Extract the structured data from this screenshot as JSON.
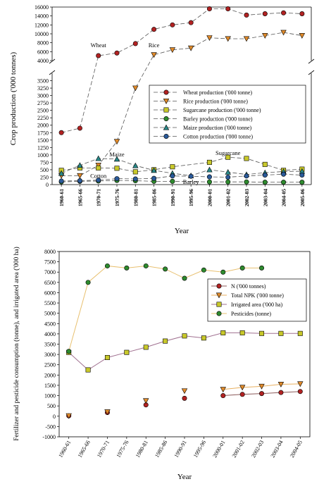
{
  "chart_data": [
    {
      "type": "line",
      "ylabel": "Crop production ('000 tonnes)",
      "xlabel": "Year",
      "categories": [
        "1960-61",
        "1965-66",
        "1970-71",
        "1975-76",
        "1980-81",
        "1985-86",
        "1990-91",
        "1995-96",
        "2000-01",
        "2001-02",
        "2002-03",
        "2003-04",
        "2004-05",
        "2005-06"
      ],
      "ylim_lower": [
        0,
        3750
      ],
      "ylim_upper": [
        4000,
        16000
      ],
      "y_ticks_lower": [
        0,
        250,
        500,
        750,
        1000,
        1250,
        1500,
        1750,
        2000,
        2250,
        2500,
        2750,
        3000,
        3250,
        3500
      ],
      "y_ticks_upper": [
        4000,
        6000,
        8000,
        10000,
        12000,
        14000,
        16000
      ],
      "axis_break": true,
      "legend_position": "middle-right",
      "series": [
        {
          "name": "Wheat production ('000 tonne)",
          "color": "#b22222",
          "marker": "circle",
          "values": [
            1750,
            1900,
            5100,
            5700,
            7800,
            11000,
            12000,
            12500,
            15600,
            15600,
            14200,
            14500,
            14700,
            14500
          ]
        },
        {
          "name": "Rice production ('000 tonne)",
          "color": "#e08a2a",
          "marker": "triangle-down",
          "values": [
            300,
            300,
            650,
            1450,
            3250,
            5300,
            6400,
            6800,
            9100,
            8900,
            8900,
            9600,
            10300,
            9600
          ]
        },
        {
          "name": "Sugarcane production ('000 tonne)",
          "color": "#c8c82a",
          "marker": "square",
          "values": [
            480,
            560,
            560,
            550,
            430,
            500,
            600,
            null,
            750,
            920,
            880,
            680,
            480,
            520
          ]
        },
        {
          "name": "Barley production ('000 tonne)",
          "color": "#2e8b2e",
          "marker": "circle",
          "values": [
            90,
            110,
            120,
            140,
            130,
            110,
            110,
            null,
            90,
            90,
            90,
            80,
            80,
            80
          ]
        },
        {
          "name": "Maize production ('000 tonne)",
          "color": "#2a8a8a",
          "marker": "triangle-up",
          "values": [
            380,
            650,
            880,
            860,
            640,
            480,
            380,
            300,
            500,
            420,
            340,
            400,
            440,
            450
          ]
        },
        {
          "name": "Cotton production ('000 tonne)",
          "color": "#2a5a9a",
          "marker": "circle",
          "values": [
            120,
            130,
            150,
            200,
            190,
            210,
            290,
            280,
            260,
            250,
            290,
            320,
            350,
            320
          ]
        }
      ],
      "annotations": [
        {
          "text": "Wheat",
          "category": "1970-71",
          "value": 7000
        },
        {
          "text": "Rice",
          "category": "1985-86",
          "value": 7000
        },
        {
          "text": "Maize",
          "category": "1975-76",
          "value": 950
        },
        {
          "text": "Cotton",
          "category": "1970-71",
          "value": 230
        },
        {
          "text": "Sugarcane",
          "category": "2001-02",
          "value": 1000
        },
        {
          "text": "Barley",
          "category": "1995-96",
          "value": 20
        }
      ]
    },
    {
      "type": "line",
      "ylabel": "Fertilizer and pesticide consumption (tonne), and irrigated area ('000 ha)",
      "xlabel": "Year",
      "categories": [
        "1960-61",
        "1965-66",
        "1970-71",
        "1975-76",
        "1980-81",
        "1985-86",
        "1990-91",
        "1995-96",
        "2000-01",
        "2001-02",
        "2002-03",
        "2003-04",
        "2004-05"
      ],
      "ylim": [
        -1000,
        8000
      ],
      "y_ticks": [
        -1000,
        -500,
        0,
        500,
        1000,
        1500,
        2000,
        2500,
        3000,
        3500,
        4000,
        4500,
        5000,
        5500,
        6000,
        6500,
        7000,
        7500,
        8000
      ],
      "legend_position": "middle-right",
      "series": [
        {
          "name": "N ('000 tonnes)",
          "color": "#b22222",
          "marker": "circle",
          "connected": [
            false,
            false,
            false,
            false,
            false,
            false,
            false,
            false,
            true,
            true,
            true,
            true,
            true
          ],
          "values": [
            20,
            null,
            180,
            null,
            550,
            null,
            870,
            null,
            1000,
            1060,
            1100,
            1150,
            1200
          ]
        },
        {
          "name": "Total NPK ('000 tonne)",
          "color": "#e08a2a",
          "marker": "triangle-down",
          "values": [
            20,
            null,
            210,
            null,
            750,
            null,
            1230,
            null,
            1300,
            1400,
            1450,
            1550,
            1570
          ]
        },
        {
          "name": "Irrigated area ('000 ha)",
          "color": "#c8c82a",
          "marker": "square",
          "values": [
            3100,
            2250,
            2850,
            3100,
            3350,
            3650,
            3900,
            3800,
            4050,
            4050,
            4020,
            4020,
            4020
          ]
        },
        {
          "name": "Pesticides (tonne)",
          "color": "#2e8b2e",
          "marker": "circle",
          "values": [
            3150,
            6500,
            7300,
            7200,
            7300,
            7150,
            6700,
            7100,
            7000,
            7200,
            7200,
            null,
            null
          ]
        }
      ]
    }
  ]
}
